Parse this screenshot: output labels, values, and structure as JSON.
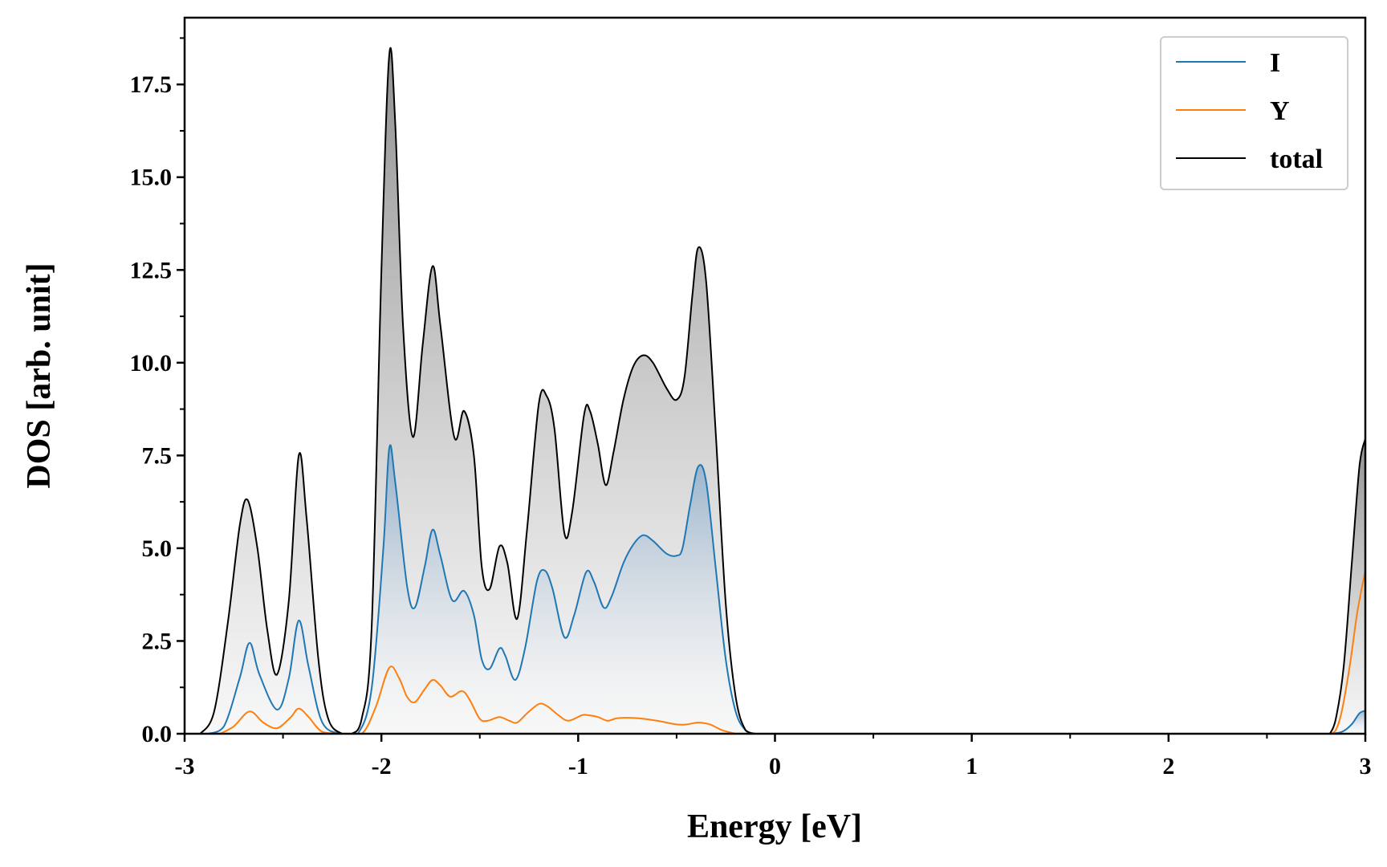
{
  "chart_data": {
    "type": "line",
    "title": "",
    "xlabel": "Energy [eV]",
    "ylabel": "DOS [arb. unit]",
    "xlim": [
      -3,
      3
    ],
    "ylim": [
      0,
      19.3
    ],
    "xticks": [
      -3,
      -2,
      -1,
      0,
      1,
      2,
      3
    ],
    "xtick_labels": [
      "-3",
      "-2",
      "-1",
      "0",
      "1",
      "2",
      "3"
    ],
    "yticks": [
      0,
      2.5,
      5,
      7.5,
      10,
      12.5,
      15,
      17.5
    ],
    "ytick_labels": [
      "0.0",
      "2.5",
      "5.0",
      "7.5",
      "10.0",
      "12.5",
      "15.0",
      "17.5"
    ],
    "legend_position": "top-right",
    "series": [
      {
        "name": "I",
        "color": "#1f77b4",
        "fill": "gradient",
        "points": [
          [
            -2.88,
            0
          ],
          [
            -2.8,
            0.2
          ],
          [
            -2.72,
            1.5
          ],
          [
            -2.67,
            2.45
          ],
          [
            -2.62,
            1.6
          ],
          [
            -2.53,
            0.65
          ],
          [
            -2.47,
            1.5
          ],
          [
            -2.42,
            3.05
          ],
          [
            -2.37,
            1.8
          ],
          [
            -2.3,
            0.3
          ],
          [
            -2.2,
            0
          ],
          [
            -2.12,
            0
          ],
          [
            -2.05,
            1.2
          ],
          [
            -1.99,
            5.0
          ],
          [
            -1.96,
            7.7
          ],
          [
            -1.93,
            6.8
          ],
          [
            -1.87,
            4.0
          ],
          [
            -1.83,
            3.4
          ],
          [
            -1.78,
            4.5
          ],
          [
            -1.74,
            5.5
          ],
          [
            -1.7,
            4.8
          ],
          [
            -1.64,
            3.6
          ],
          [
            -1.58,
            3.85
          ],
          [
            -1.53,
            3.2
          ],
          [
            -1.49,
            2.0
          ],
          [
            -1.45,
            1.75
          ],
          [
            -1.4,
            2.3
          ],
          [
            -1.37,
            2.1
          ],
          [
            -1.32,
            1.45
          ],
          [
            -1.27,
            2.3
          ],
          [
            -1.21,
            4.1
          ],
          [
            -1.17,
            4.4
          ],
          [
            -1.13,
            3.9
          ],
          [
            -1.07,
            2.6
          ],
          [
            -1.02,
            3.2
          ],
          [
            -0.96,
            4.35
          ],
          [
            -0.92,
            4.1
          ],
          [
            -0.87,
            3.4
          ],
          [
            -0.83,
            3.7
          ],
          [
            -0.77,
            4.6
          ],
          [
            -0.72,
            5.1
          ],
          [
            -0.67,
            5.35
          ],
          [
            -0.62,
            5.2
          ],
          [
            -0.55,
            4.85
          ],
          [
            -0.5,
            4.8
          ],
          [
            -0.47,
            5.0
          ],
          [
            -0.43,
            6.2
          ],
          [
            -0.39,
            7.2
          ],
          [
            -0.35,
            6.8
          ],
          [
            -0.3,
            4.4
          ],
          [
            -0.25,
            2.0
          ],
          [
            -0.2,
            0.6
          ],
          [
            -0.15,
            0.1
          ],
          [
            -0.1,
            0
          ],
          [
            2.82,
            0
          ],
          [
            2.88,
            0.05
          ],
          [
            2.93,
            0.25
          ],
          [
            2.97,
            0.55
          ],
          [
            3.0,
            0.62
          ]
        ]
      },
      {
        "name": "Y",
        "color": "#ff7f0e",
        "fill": "none",
        "points": [
          [
            -2.82,
            0
          ],
          [
            -2.75,
            0.2
          ],
          [
            -2.67,
            0.6
          ],
          [
            -2.6,
            0.3
          ],
          [
            -2.53,
            0.15
          ],
          [
            -2.46,
            0.45
          ],
          [
            -2.42,
            0.68
          ],
          [
            -2.37,
            0.45
          ],
          [
            -2.3,
            0.05
          ],
          [
            -2.2,
            0
          ],
          [
            -2.1,
            0
          ],
          [
            -2.03,
            0.7
          ],
          [
            -1.96,
            1.78
          ],
          [
            -1.91,
            1.5
          ],
          [
            -1.87,
            1.0
          ],
          [
            -1.83,
            0.85
          ],
          [
            -1.78,
            1.2
          ],
          [
            -1.74,
            1.45
          ],
          [
            -1.7,
            1.3
          ],
          [
            -1.65,
            1.0
          ],
          [
            -1.59,
            1.15
          ],
          [
            -1.55,
            0.9
          ],
          [
            -1.5,
            0.4
          ],
          [
            -1.46,
            0.35
          ],
          [
            -1.4,
            0.45
          ],
          [
            -1.35,
            0.35
          ],
          [
            -1.31,
            0.3
          ],
          [
            -1.26,
            0.55
          ],
          [
            -1.2,
            0.8
          ],
          [
            -1.16,
            0.75
          ],
          [
            -1.1,
            0.5
          ],
          [
            -1.05,
            0.35
          ],
          [
            -0.98,
            0.5
          ],
          [
            -0.95,
            0.5
          ],
          [
            -0.9,
            0.45
          ],
          [
            -0.85,
            0.35
          ],
          [
            -0.8,
            0.42
          ],
          [
            -0.7,
            0.42
          ],
          [
            -0.6,
            0.35
          ],
          [
            -0.5,
            0.25
          ],
          [
            -0.45,
            0.25
          ],
          [
            -0.39,
            0.3
          ],
          [
            -0.33,
            0.25
          ],
          [
            -0.27,
            0.1
          ],
          [
            -0.2,
            0
          ],
          [
            2.82,
            0
          ],
          [
            2.85,
            0.1
          ],
          [
            2.88,
            0.6
          ],
          [
            2.92,
            1.8
          ],
          [
            2.96,
            3.3
          ],
          [
            3.0,
            4.4
          ]
        ]
      },
      {
        "name": "total",
        "color": "#000000",
        "fill": "gradient",
        "points": [
          [
            -2.92,
            0
          ],
          [
            -2.85,
            0.6
          ],
          [
            -2.78,
            3.0
          ],
          [
            -2.72,
            5.6
          ],
          [
            -2.68,
            6.3
          ],
          [
            -2.63,
            5.0
          ],
          [
            -2.58,
            2.8
          ],
          [
            -2.53,
            1.6
          ],
          [
            -2.47,
            3.6
          ],
          [
            -2.42,
            7.5
          ],
          [
            -2.38,
            5.8
          ],
          [
            -2.32,
            2.0
          ],
          [
            -2.27,
            0.4
          ],
          [
            -2.2,
            0
          ],
          [
            -2.15,
            0
          ],
          [
            -2.1,
            0.4
          ],
          [
            -2.05,
            2.8
          ],
          [
            -2.0,
            12.5
          ],
          [
            -1.96,
            18.3
          ],
          [
            -1.93,
            16.5
          ],
          [
            -1.89,
            11.0
          ],
          [
            -1.84,
            8.0
          ],
          [
            -1.79,
            10.5
          ],
          [
            -1.74,
            12.6
          ],
          [
            -1.7,
            11.0
          ],
          [
            -1.63,
            8.0
          ],
          [
            -1.58,
            8.7
          ],
          [
            -1.53,
            7.5
          ],
          [
            -1.49,
            4.5
          ],
          [
            -1.45,
            3.9
          ],
          [
            -1.4,
            5.05
          ],
          [
            -1.36,
            4.6
          ],
          [
            -1.31,
            3.1
          ],
          [
            -1.26,
            5.5
          ],
          [
            -1.2,
            8.9
          ],
          [
            -1.16,
            9.1
          ],
          [
            -1.12,
            8.2
          ],
          [
            -1.07,
            5.4
          ],
          [
            -1.03,
            6.0
          ],
          [
            -0.97,
            8.6
          ],
          [
            -0.94,
            8.7
          ],
          [
            -0.9,
            7.8
          ],
          [
            -0.86,
            6.7
          ],
          [
            -0.82,
            7.6
          ],
          [
            -0.77,
            9.0
          ],
          [
            -0.72,
            9.9
          ],
          [
            -0.67,
            10.2
          ],
          [
            -0.62,
            10.0
          ],
          [
            -0.55,
            9.3
          ],
          [
            -0.5,
            9.0
          ],
          [
            -0.46,
            9.6
          ],
          [
            -0.42,
            11.8
          ],
          [
            -0.39,
            13.1
          ],
          [
            -0.35,
            12.2
          ],
          [
            -0.3,
            8.0
          ],
          [
            -0.25,
            3.5
          ],
          [
            -0.2,
            1.0
          ],
          [
            -0.15,
            0.1
          ],
          [
            -0.1,
            0
          ],
          [
            2.82,
            0
          ],
          [
            2.85,
            0.4
          ],
          [
            2.89,
            1.8
          ],
          [
            2.93,
            4.5
          ],
          [
            2.97,
            7.2
          ],
          [
            3.0,
            7.95
          ]
        ]
      }
    ]
  }
}
